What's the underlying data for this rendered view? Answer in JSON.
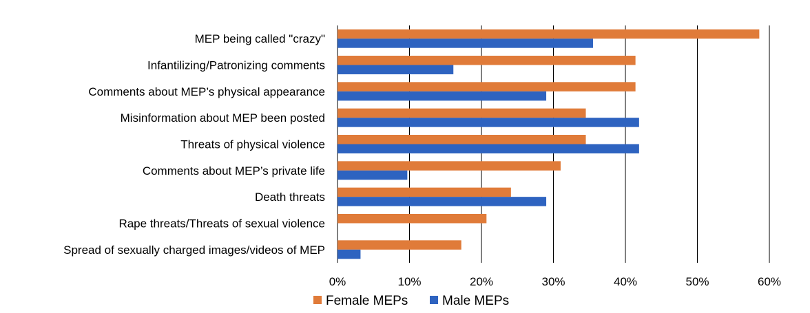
{
  "chart_data": {
    "type": "bar",
    "orientation": "horizontal",
    "categories": [
      "MEP being called \"crazy\"",
      "Infantilizing/Patronizing comments",
      "Comments about MEP’s physical appearance",
      "Misinformation about MEP been posted",
      "Threats of physical violence",
      "Comments about MEP’s private life",
      "Death threats",
      "Rape threats/Threats of sexual violence",
      "Spread of sexually charged images/videos of MEP"
    ],
    "series": [
      {
        "name": "Female MEPs",
        "color": "#E07B39",
        "values": [
          58.6,
          41.4,
          41.4,
          34.5,
          34.5,
          31.0,
          24.1,
          20.7,
          17.2
        ]
      },
      {
        "name": "Male MEPs",
        "color": "#2E63C0",
        "values": [
          35.5,
          16.1,
          29.0,
          41.9,
          41.9,
          9.7,
          29.0,
          0,
          3.2
        ]
      }
    ],
    "xlim": [
      0,
      60
    ],
    "xticks": [
      "0%",
      "10%",
      "20%",
      "30%",
      "40%",
      "50%",
      "60%"
    ],
    "tick_values": [
      0,
      10,
      20,
      30,
      40,
      50,
      60
    ],
    "grid": "vertical",
    "legend": "bottom-center"
  }
}
